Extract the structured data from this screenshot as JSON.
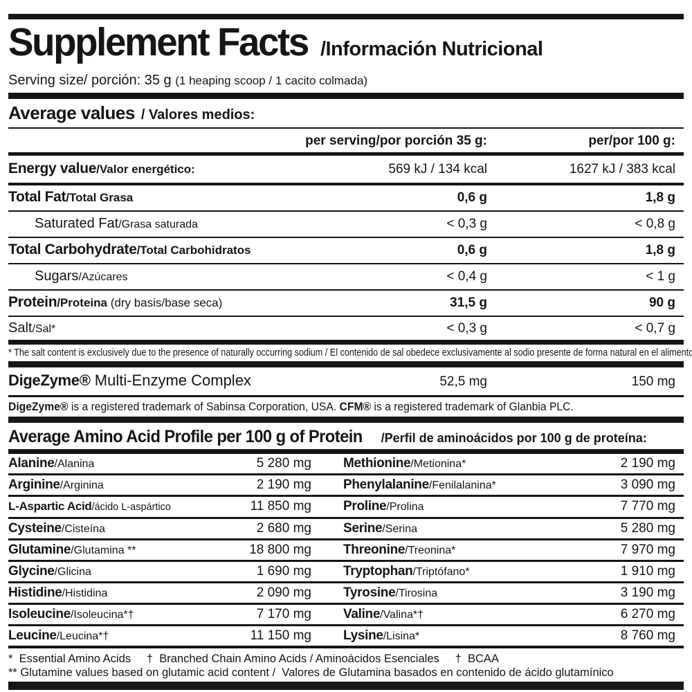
{
  "header": {
    "title_en": "Supplement Facts",
    "title_es": "/Información Nutricional",
    "serving": "Serving size/ porción: 35 g ",
    "serving_note": "(1 heaping scoop / 1 cacito colmada)"
  },
  "avg": {
    "en": "Average values",
    "es": "/  Valores medios:"
  },
  "columns": {
    "per_serving": "per serving/por porción 35 g:",
    "per_100": "per/por 100 g:"
  },
  "main": {
    "rows": [
      {
        "en": "Energy value",
        "es": "/Valor energético:",
        "v1": "569 kJ / 134 kcal",
        "v2": "1627 kJ / 383 kcal"
      },
      {
        "en": "Total Fat",
        "es": "/Total Grasa",
        "v1": "0,6 g",
        "v2": "1,8 g"
      },
      {
        "en": "Saturated Fat",
        "es": "/Grasa saturada",
        "v1": "< 0,3 g",
        "v2": "< 0,8 g"
      },
      {
        "en": "Total Carbohydrate",
        "es": "/Total Carbohidratos",
        "v1": "0,6 g",
        "v2": "1,8 g"
      },
      {
        "en": "Sugars",
        "es": "/Azúcares",
        "v1": "< 0,4 g",
        "v2": "< 1 g"
      },
      {
        "en": "Protein",
        "es": "/Proteina",
        "note": " (dry basis/base seca)",
        "v1": "31,5 g",
        "v2": "90 g"
      },
      {
        "en": "Salt",
        "es": "/Sal*",
        "v1": "< 0,3 g",
        "v2": "< 0,7 g"
      }
    ],
    "salt_footnote": "* The salt content is exclusively due to the presence of naturally occurring sodium / El contenido de sal obedece exclusivamente al sodio presente de forma natural en el alimento."
  },
  "digezyme": {
    "name_bold": "DigeZyme®",
    "name_rest": " Multi-Enzyme Complex",
    "v1": "52,5 mg",
    "v2": "150 mg",
    "tm_b1": "DigeZyme®",
    "tm_r1": " is a registered trademark of Sabinsa Corporation, USA. ",
    "tm_b2": "CFM®",
    "tm_r2": " is a registered trademark of Glanbia PLC."
  },
  "amino": {
    "title_en": "Average Amino Acid Profile per 100 g of Protein",
    "title_es": "/Perfil de aminoácidos por 100 g de proteína:",
    "rows": [
      {
        "l_en": "Alanine",
        "l_es": "/Alanina",
        "l_v": "5 280 mg",
        "r_en": "Methionine",
        "r_es": "/Metionina*",
        "r_v": "2 190 mg"
      },
      {
        "l_en": "Arginine",
        "l_es": "/Arginina",
        "l_v": "2 190 mg",
        "r_en": "Phenylalanine",
        "r_es": "/Fenilalanina*",
        "r_v": "3 090 mg"
      },
      {
        "l_en": "L-Aspartic Acid",
        "l_es": "/ácido L-aspártico",
        "l_v": "11 850 mg",
        "r_en": "Proline",
        "r_es": "/Prolina",
        "r_v": "7 770 mg"
      },
      {
        "l_en": "Cysteine",
        "l_es": "/Cisteína",
        "l_v": "2 680 mg",
        "r_en": "Serine",
        "r_es": "/Serina",
        "r_v": "5 280 mg"
      },
      {
        "l_en": "Glutamine",
        "l_es": "/Glutamina **",
        "l_v": "18 800 mg",
        "r_en": "Threonine",
        "r_es": "/Treonina*",
        "r_v": "7 970 mg"
      },
      {
        "l_en": "Glycine",
        "l_es": "/Glicina",
        "l_v": "1 690 mg",
        "r_en": "Tryptophan",
        "r_es": "/Triptófano*",
        "r_v": "1 910 mg"
      },
      {
        "l_en": "Histidine",
        "l_es": "/Histidina",
        "l_v": "2 090 mg",
        "r_en": "Tyrosine",
        "r_es": "/Tirosina",
        "r_v": "3 190 mg"
      },
      {
        "l_en": "Isoleucine",
        "l_es": "/Isoleucina*†",
        "l_v": "7 170 mg",
        "r_en": "Valine",
        "r_es": "/Valina*†",
        "r_v": "6 270 mg"
      },
      {
        "l_en": "Leucine",
        "l_es": "/Leucina*†",
        "l_v": "11 150 mg",
        "r_en": "Lysine",
        "r_es": "/Lisina*",
        "r_v": "8 760 mg"
      }
    ],
    "footnote1": "*  Essential Amino Acids     †  Branched Chain Amino Acids / Aminoácidos Esenciales     †  BCAA",
    "footnote2": "** Glutamine values based on glutamic acid content /  Valores de Glutamina basados en contenido de ácido glutamínico"
  }
}
